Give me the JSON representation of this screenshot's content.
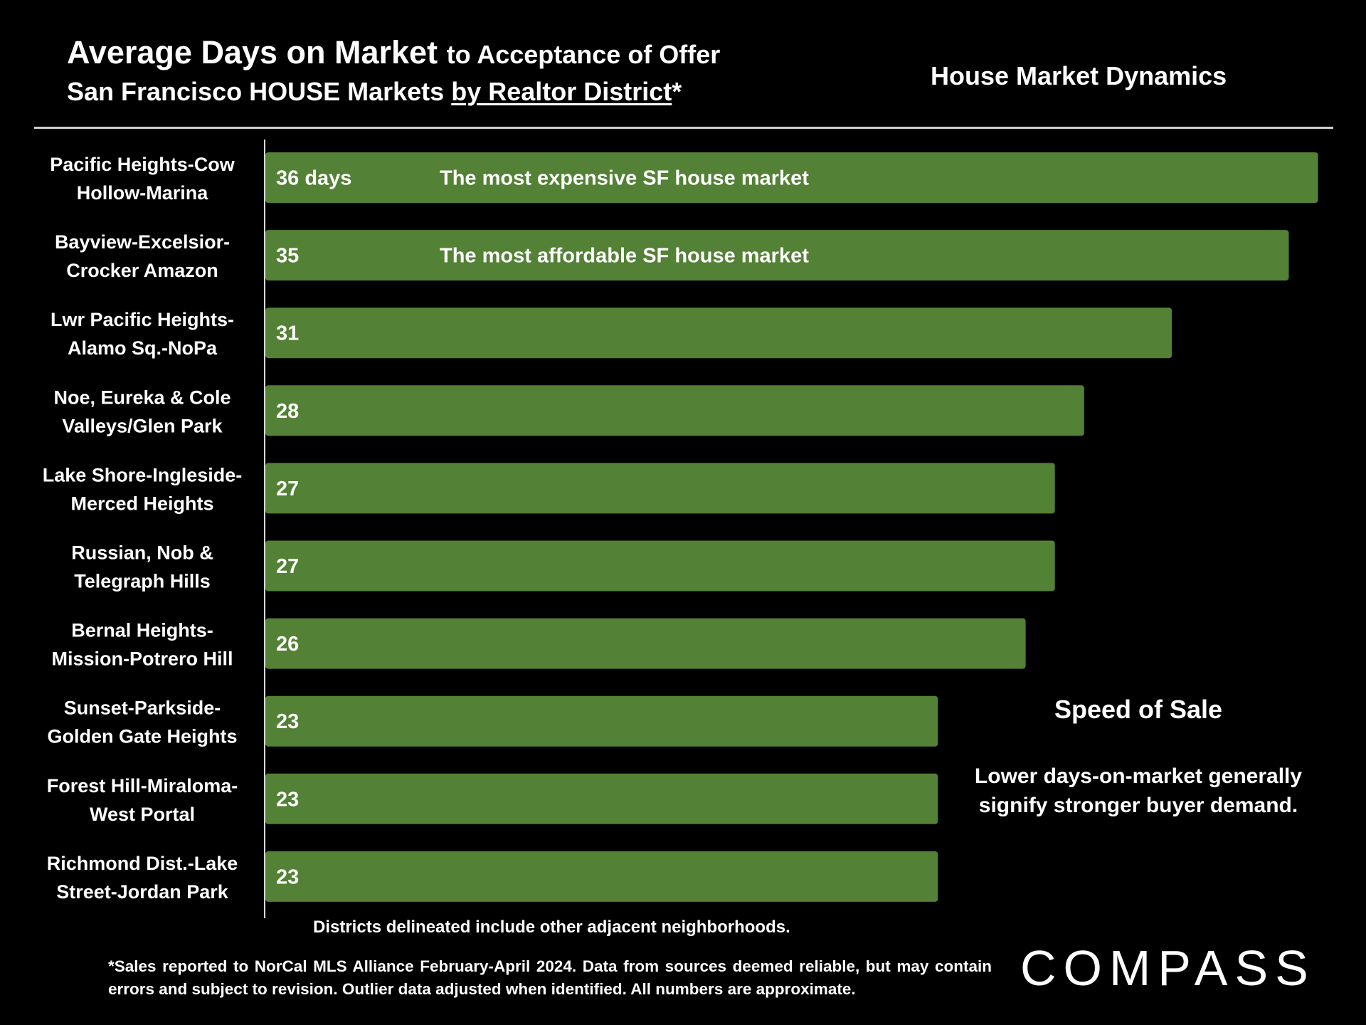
{
  "title": {
    "main": "Average Days on Market",
    "main_suffix": "to Acceptance of Offer",
    "line2_prefix": "San Francisco HOUSE Markets",
    "line2_underlined": "by Realtor District",
    "line2_suffix": "*"
  },
  "section_label": "House Market Dynamics",
  "chart_data": {
    "type": "bar",
    "orientation": "horizontal",
    "categories": [
      [
        "Pacific Heights-Cow",
        "Hollow-Marina"
      ],
      [
        "Bayview-Excelsior-",
        "Crocker Amazon"
      ],
      [
        "Lwr Pacific Heights-",
        "Alamo Sq.-NoPa"
      ],
      [
        "Noe, Eureka & Cole",
        "Valleys/Glen Park"
      ],
      [
        "Lake Shore-Ingleside-",
        "Merced Heights"
      ],
      [
        "Russian, Nob &",
        "Telegraph Hills"
      ],
      [
        "Bernal Heights-",
        "Mission-Potrero Hill"
      ],
      [
        "Sunset-Parkside-",
        "Golden Gate Heights"
      ],
      [
        "Forest Hill-Miraloma-",
        "West Portal"
      ],
      [
        "Richmond Dist.-Lake",
        "Street-Jordan Park"
      ]
    ],
    "values": [
      36,
      35,
      31,
      28,
      27,
      27,
      26,
      23,
      23,
      23
    ],
    "data_labels": [
      "36 days",
      "35",
      "31",
      "28",
      "27",
      "27",
      "26",
      "23",
      "23",
      "23"
    ],
    "annotations": [
      {
        "bar_index": 0,
        "text": "The most expensive SF house market"
      },
      {
        "bar_index": 1,
        "text": "The most affordable SF house market"
      }
    ],
    "bar_color": "#538135",
    "grid": false,
    "legend": "none"
  },
  "note": "Districts delineated include other adjacent neighborhoods.",
  "speed_of_sale": {
    "title": "Speed of Sale",
    "body": "Lower days-on-market generally signify stronger buyer demand."
  },
  "footnote": "*Sales reported to NorCal MLS Alliance February-April 2024. Data from sources deemed reliable, but may contain errors and subject to revision. Outlier data adjusted when identified. All numbers are approximate.",
  "logo": "COMPASS",
  "colors": {
    "background": "#000000",
    "text": "#ffffff",
    "bar": "#538135",
    "rule": "#cfcfcf"
  }
}
